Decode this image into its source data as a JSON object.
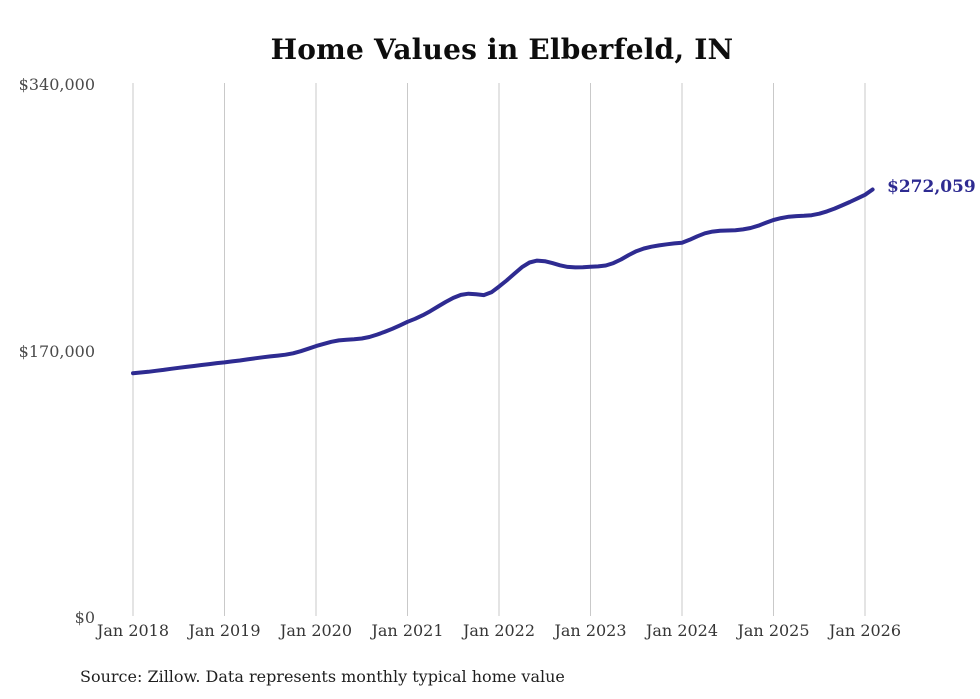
{
  "title": "Home Values in Elberfeld, IN",
  "source": "Source: Zillow. Data represents monthly typical home value",
  "colors": {
    "line": "#2e2b91",
    "grid": "#c9c9c9",
    "y_tick_text": "#4a4a4a",
    "x_tick_text": "#363636",
    "title_text": "#0d0d0d"
  },
  "chart_data": {
    "type": "line",
    "title": "Home Values in Elberfeld, IN",
    "xlabel": "",
    "ylabel": "",
    "x_tick_labels": [
      "Jan 2018",
      "Jan 2019",
      "Jan 2020",
      "Jan 2021",
      "Jan 2022",
      "Jan 2023",
      "Jan 2024",
      "Jan 2025",
      "Jan 2026"
    ],
    "y_ticks": [
      {
        "label": "$0",
        "value": 0
      },
      {
        "label": "$170,000",
        "value": 170000
      },
      {
        "label": "$340,000",
        "value": 340000
      }
    ],
    "ylim": [
      0,
      340000
    ],
    "grid": "vertical-only",
    "legend": "none",
    "end_label": "$272,059",
    "end_value": 272059,
    "series": [
      {
        "name": "Monthly typical home value (USD)",
        "x_monthly_start": "2018-01",
        "x_monthly_end": "2026-02",
        "values": [
          154900,
          155300,
          155800,
          156400,
          157000,
          157700,
          158300,
          158900,
          159500,
          160100,
          160700,
          161300,
          161800,
          162400,
          163000,
          163700,
          164400,
          165000,
          165600,
          166100,
          166700,
          167600,
          168900,
          170500,
          172200,
          173600,
          174900,
          175800,
          176200,
          176500,
          177000,
          178000,
          179500,
          181200,
          183200,
          185400,
          187700,
          189600,
          191900,
          194500,
          197400,
          200300,
          202900,
          204800,
          205600,
          205200,
          204700,
          206500,
          210100,
          214000,
          218300,
          222500,
          225500,
          226700,
          226300,
          225100,
          223700,
          222700,
          222400,
          222500,
          222800,
          223000,
          223600,
          225100,
          227400,
          230200,
          232700,
          234400,
          235600,
          236400,
          237100,
          237700,
          238100,
          240000,
          242200,
          244100,
          245200,
          245700,
          245900,
          246100,
          246600,
          247500,
          249000,
          250800,
          252600,
          253800,
          254700,
          255100,
          255300,
          255700,
          256600,
          258100,
          259900,
          261900,
          264100,
          266400,
          268700,
          272059
        ]
      }
    ]
  }
}
